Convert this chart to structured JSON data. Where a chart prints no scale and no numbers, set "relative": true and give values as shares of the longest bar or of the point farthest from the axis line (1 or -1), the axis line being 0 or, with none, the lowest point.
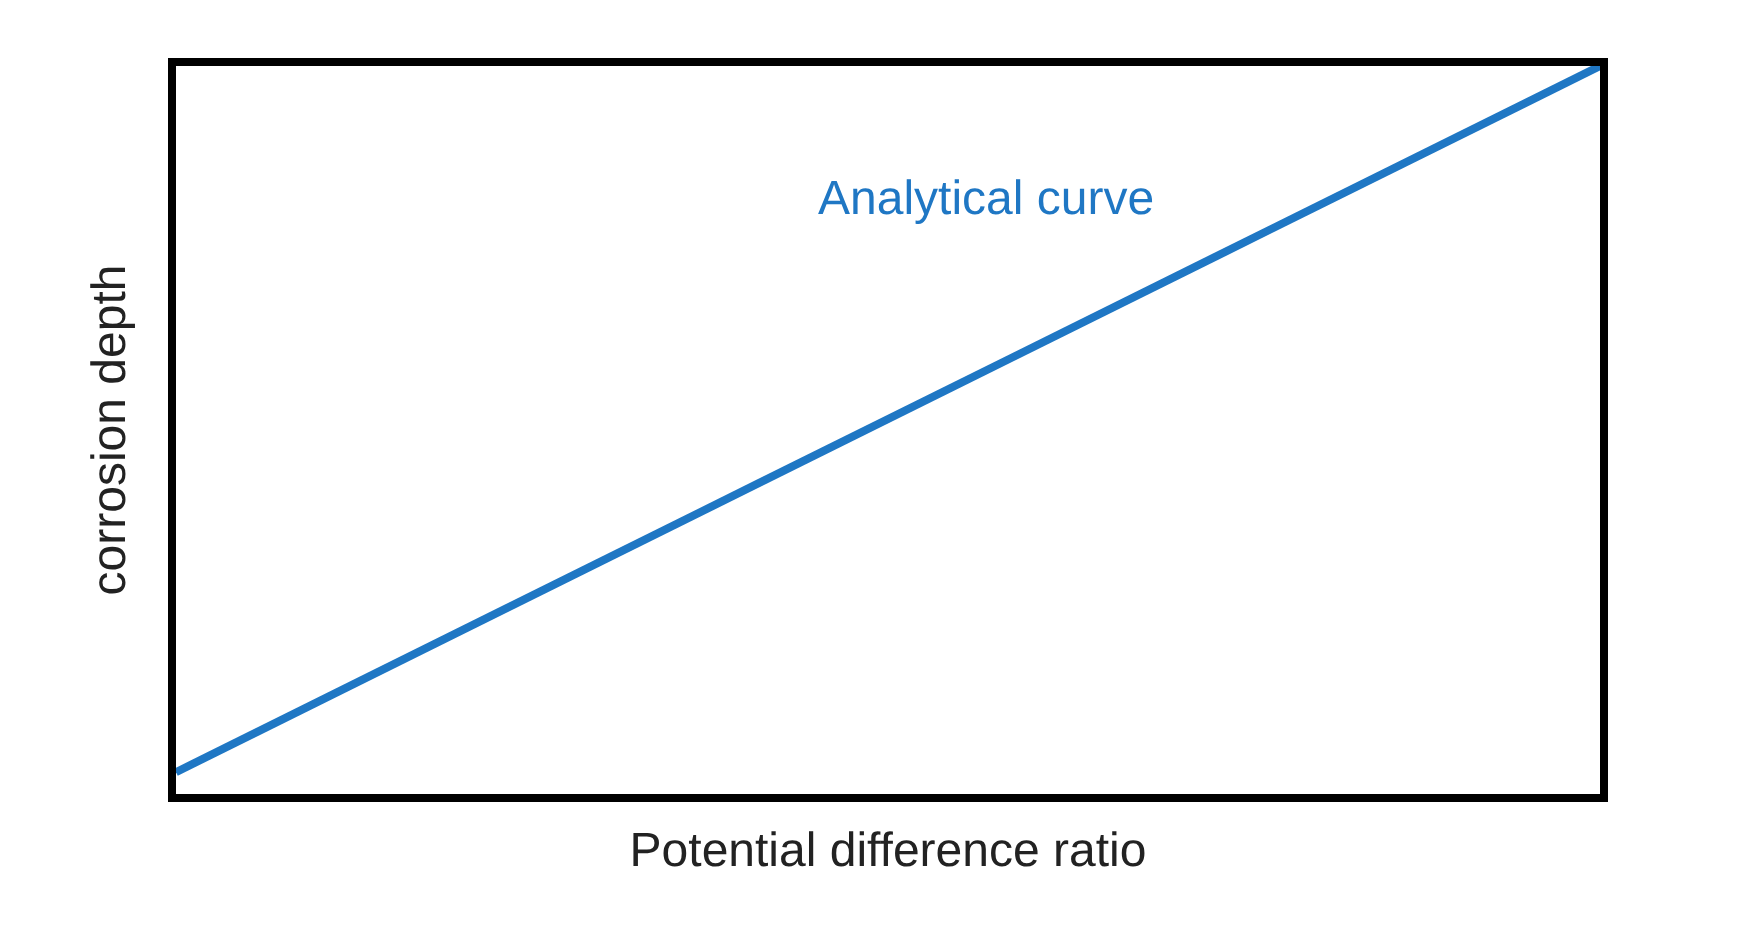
{
  "chart_data": {
    "type": "line",
    "relative": true,
    "xlabel": "Potential difference ratio",
    "ylabel": "corrosion depth",
    "categories": [
      null,
      null
    ],
    "series": [
      {
        "color": "#1f77c4",
        "values": [
          0.03,
          1
        ]
      }
    ],
    "annotations": [
      "Analytical curve"
    ],
    "marker": "none",
    "line_style": "solid"
  }
}
